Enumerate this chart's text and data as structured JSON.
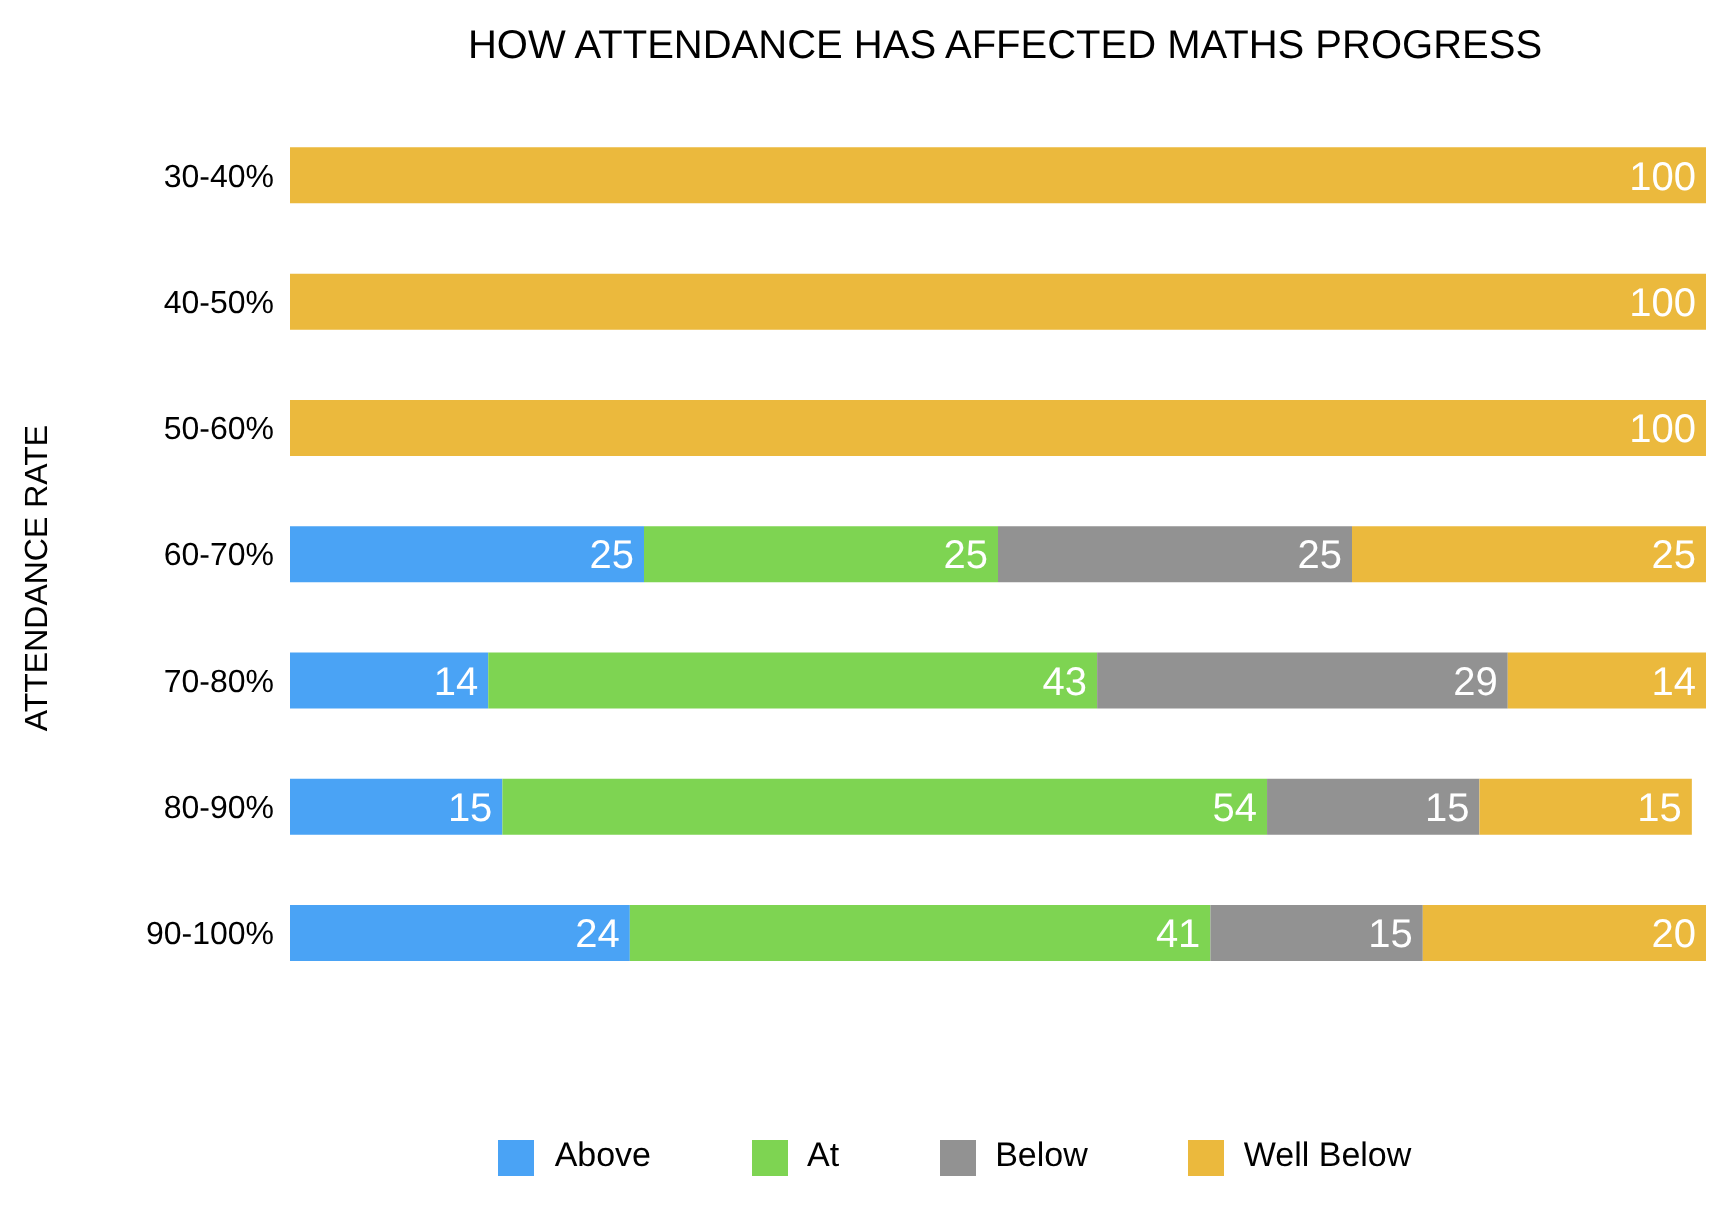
{
  "chart_data": {
    "type": "bar",
    "orientation": "horizontal",
    "stacked": true,
    "title": "HOW ATTENDANCE HAS AFFECTED MATHS PROGRESS",
    "ylabel": "ATTENDANCE RATE",
    "categories": [
      "30-40%",
      "40-50%",
      "50-60%",
      "60-70%",
      "70-80%",
      "80-90%",
      "90-100%"
    ],
    "series": [
      {
        "name": "Above",
        "color": "#4aa3f5",
        "values": [
          null,
          null,
          null,
          25,
          14,
          15,
          24
        ]
      },
      {
        "name": "At",
        "color": "#7ed452",
        "values": [
          null,
          null,
          null,
          25,
          43,
          54,
          41
        ]
      },
      {
        "name": "Below",
        "color": "#929292",
        "values": [
          null,
          null,
          null,
          25,
          29,
          15,
          15
        ]
      },
      {
        "name": "Well Below",
        "color": "#ebb93d",
        "values": [
          100,
          100,
          100,
          25,
          14,
          15,
          20
        ]
      }
    ],
    "xlim": [
      0,
      100
    ],
    "tick_labels": "y",
    "data_labels": true,
    "legend": "bottom"
  }
}
